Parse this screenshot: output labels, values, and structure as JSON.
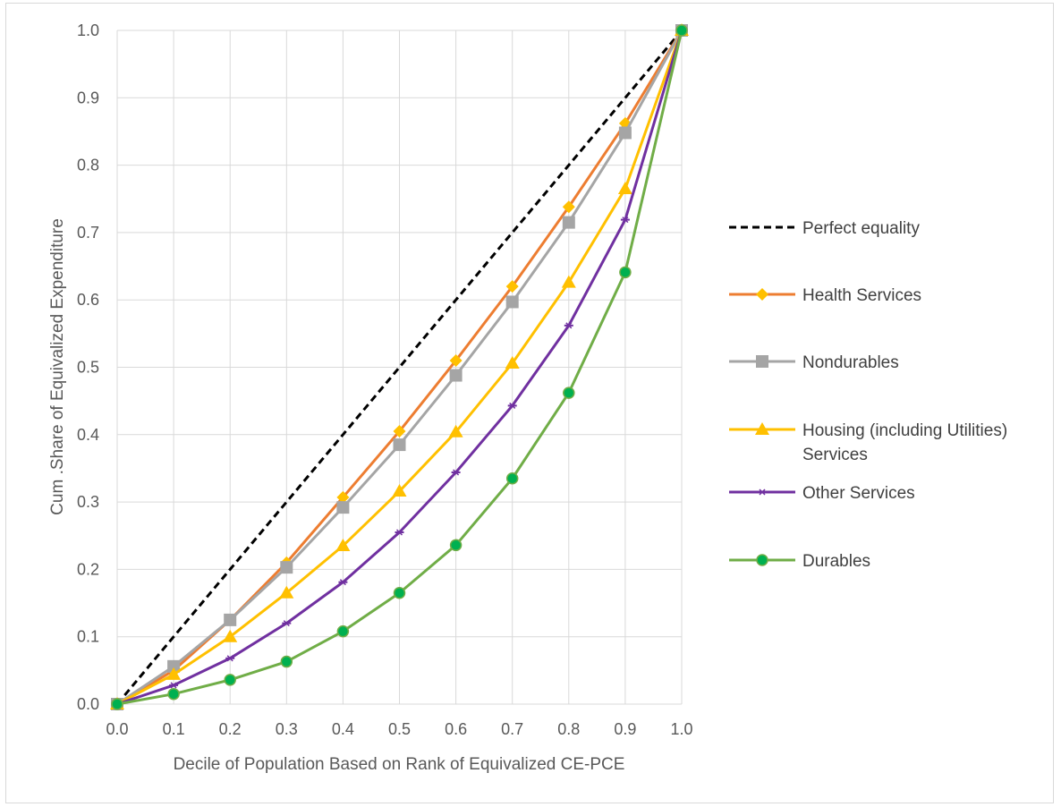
{
  "chart_data": {
    "type": "line",
    "title": "",
    "xlabel": "Decile of Population Based on Rank of Equivalized CE-PCE",
    "ylabel": "Cum .Share of Equivalized Expenditure",
    "xlim": [
      0,
      1
    ],
    "ylim": [
      0,
      1
    ],
    "grid": true,
    "legend_position": "right",
    "x": [
      0.0,
      0.1,
      0.2,
      0.3,
      0.4,
      0.5,
      0.6,
      0.7,
      0.8,
      0.9,
      1.0
    ],
    "x_tick_labels": [
      "0.0",
      "0.1",
      "0.2",
      "0.3",
      "0.4",
      "0.5",
      "0.6",
      "0.7",
      "0.8",
      "0.9",
      "1.0"
    ],
    "y_tick_labels": [
      "0.0",
      "0.1",
      "0.2",
      "0.3",
      "0.4",
      "0.5",
      "0.6",
      "0.7",
      "0.8",
      "0.9",
      "1.0"
    ],
    "series": [
      {
        "name": "Perfect equality",
        "color": "#000000",
        "style": "dashed",
        "marker": "none",
        "values": [
          0.0,
          0.1,
          0.2,
          0.3,
          0.4,
          0.5,
          0.6,
          0.7,
          0.8,
          0.9,
          1.0
        ]
      },
      {
        "name": "Health Services",
        "color": "#ED7D31",
        "style": "solid",
        "marker": "diamond",
        "marker_color": "#FFC000",
        "values": [
          0.0,
          0.05,
          0.125,
          0.21,
          0.307,
          0.405,
          0.51,
          0.62,
          0.738,
          0.862,
          1.0
        ]
      },
      {
        "name": "Nondurables",
        "color": "#A5A5A5",
        "style": "solid",
        "marker": "square",
        "marker_color": "#A5A5A5",
        "values": [
          0.0,
          0.056,
          0.125,
          0.203,
          0.292,
          0.385,
          0.488,
          0.597,
          0.715,
          0.848,
          1.0
        ]
      },
      {
        "name": "Housing (including Utilities) Services",
        "color": "#FFC000",
        "style": "solid",
        "marker": "triangle",
        "marker_color": "#FFC000",
        "values": [
          0.0,
          0.044,
          0.1,
          0.165,
          0.235,
          0.316,
          0.404,
          0.506,
          0.626,
          0.765,
          1.0
        ]
      },
      {
        "name": "Other Services",
        "color": "#7030A0",
        "style": "solid",
        "marker": "star",
        "marker_color": "#7030A0",
        "values": [
          0.0,
          0.028,
          0.068,
          0.12,
          0.181,
          0.255,
          0.344,
          0.443,
          0.562,
          0.719,
          1.0
        ]
      },
      {
        "name": "Durables",
        "color": "#70AD47",
        "style": "solid",
        "marker": "circle",
        "marker_color": "#00B050",
        "values": [
          0.0,
          0.015,
          0.036,
          0.063,
          0.108,
          0.165,
          0.236,
          0.335,
          0.462,
          0.641,
          1.0
        ]
      }
    ],
    "legend_lines": [
      [
        "Perfect equality"
      ],
      [
        "Health Services"
      ],
      [
        "Nondurables"
      ],
      [
        "Housing (including Utilities)",
        "Services"
      ],
      [
        "Other Services"
      ],
      [
        "Durables"
      ]
    ]
  }
}
